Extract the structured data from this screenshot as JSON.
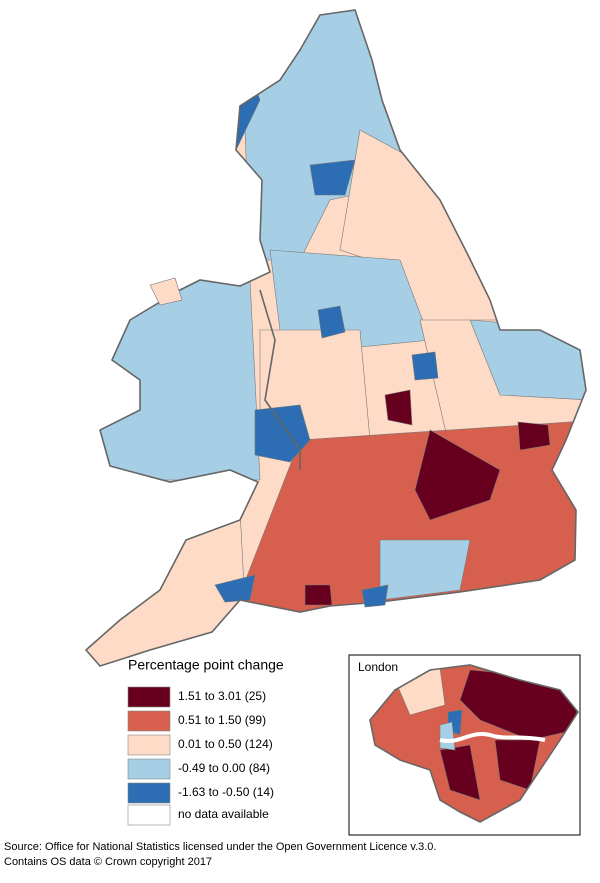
{
  "legend": {
    "title": "Percentage point change",
    "items": [
      {
        "label": "1.51 to 3.01 (25)",
        "color": "#67001f"
      },
      {
        "label": "0.51 to 1.50 (99)",
        "color": "#d6604d"
      },
      {
        "label": "0.01 to 0.50 (124)",
        "color": "#fddbc7"
      },
      {
        "label": "-0.49 to 0.00 (84)",
        "color": "#a6cfe6"
      },
      {
        "label": "-1.63 to -0.50 (14)",
        "color": "#2c6db3"
      }
    ],
    "no_data": {
      "label": "no data available",
      "color": "#ffffff"
    }
  },
  "inset": {
    "title": "London"
  },
  "source": [
    "Source: Office for National Statistics licensed under the Open Government Licence v.3.0.",
    "Contains OS data © Crown copyright 2017"
  ]
}
